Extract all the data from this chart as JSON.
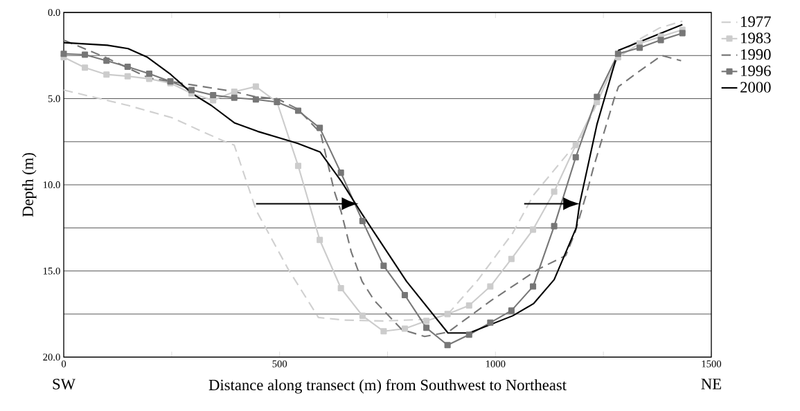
{
  "chart_data": {
    "type": "line",
    "xlabel": "Distance along transect (m) from Southwest to Northeast",
    "ylabel": "Depth (m)",
    "annotations": [
      "SW",
      "NE"
    ],
    "xlim": [
      0,
      1500
    ],
    "xticks": [
      0,
      {
        "value": 250,
        "label": null
      },
      500,
      {
        "value": 750,
        "label": null
      },
      1000,
      {
        "value": 1250,
        "label": null
      },
      1500
    ],
    "ylim": [
      20,
      0
    ],
    "yticks": [
      {
        "value": 0,
        "label": "0.0"
      },
      {
        "value": 2.5,
        "label": null
      },
      {
        "value": 5,
        "label": "5.0"
      },
      {
        "value": 7.5,
        "label": null
      },
      {
        "value": 10,
        "label": "10.0"
      },
      {
        "value": 12.5,
        "label": null
      },
      {
        "value": 15,
        "label": "15.0"
      },
      {
        "value": 17.5,
        "label": null
      },
      {
        "value": 20,
        "label": "20.0"
      }
    ],
    "grid": "y",
    "legend": "top right",
    "series": [
      {
        "name": "1977",
        "color": "#d0d0d0",
        "line_style": "dashed",
        "marker": "none",
        "x": [
          0,
          150,
          250,
          320,
          374,
          395,
          446,
          520,
          590,
          650,
          740,
          850,
          890,
          960,
          1040,
          1088,
          1200,
          1285,
          1330,
          1380,
          1433
        ],
        "values": [
          4.5,
          5.4,
          6.1,
          6.9,
          7.5,
          7.7,
          11.5,
          14.9,
          17.7,
          17.85,
          17.9,
          17.8,
          17.5,
          15.5,
          12.8,
          10.6,
          7.2,
          2.5,
          1.6,
          0.9,
          0.5
        ]
      },
      {
        "name": "1983",
        "color": "#cccccc",
        "line_style": "solid",
        "marker": "square",
        "x": [
          0,
          49,
          99,
          148,
          198,
          247,
          296,
          346,
          395,
          445,
          494,
          543,
          593,
          642,
          692,
          741,
          790,
          840,
          889,
          939,
          988,
          1037,
          1087,
          1136,
          1186,
          1235,
          1284,
          1334,
          1383,
          1433
        ],
        "values": [
          2.6,
          3.2,
          3.6,
          3.7,
          3.85,
          4.1,
          4.7,
          5.1,
          4.6,
          4.3,
          5.2,
          8.9,
          13.2,
          16.0,
          17.6,
          18.5,
          18.35,
          17.9,
          17.5,
          17.0,
          15.9,
          14.3,
          12.6,
          10.4,
          7.7,
          5.2,
          2.6,
          1.8,
          1.4,
          1.0
        ]
      },
      {
        "name": "1990",
        "color": "#777777",
        "line_style": "dashed",
        "marker": "none",
        "x": [
          0,
          96,
          197,
          247,
          297,
          347,
          396,
          445,
          494,
          542,
          595,
          627,
          643,
          666,
          691,
          719,
          783,
          836,
          890,
          991,
          1051,
          1099,
          1163,
          1184,
          1211,
          1227,
          1275,
          1285,
          1328,
          1385,
          1430
        ],
        "values": [
          1.6,
          2.6,
          3.8,
          4.0,
          4.2,
          4.4,
          4.6,
          4.9,
          5.0,
          5.6,
          7.0,
          10.4,
          11.6,
          13.9,
          15.6,
          16.7,
          18.4,
          18.8,
          18.55,
          16.7,
          15.7,
          14.9,
          14.1,
          12.8,
          10.5,
          9.0,
          5.0,
          4.3,
          3.5,
          2.5,
          2.8
        ]
      },
      {
        "name": "1996",
        "color": "#777777",
        "line_style": "solid",
        "marker": "square",
        "x": [
          0,
          49,
          99,
          148,
          198,
          247,
          296,
          346,
          395,
          445,
          494,
          543,
          593,
          642,
          692,
          741,
          790,
          840,
          889,
          939,
          988,
          1037,
          1087,
          1136,
          1186,
          1235,
          1284,
          1334,
          1383,
          1433
        ],
        "values": [
          2.4,
          2.45,
          2.8,
          3.15,
          3.55,
          4.0,
          4.5,
          4.8,
          4.95,
          5.05,
          5.2,
          5.7,
          6.7,
          9.3,
          12.1,
          14.7,
          16.4,
          18.3,
          19.3,
          18.7,
          18.0,
          17.3,
          15.9,
          12.4,
          8.4,
          4.9,
          2.4,
          2.05,
          1.6,
          1.2
        ]
      },
      {
        "name": "2000",
        "color": "#000000",
        "line_style": "solid",
        "marker": "none",
        "x": [
          0,
          101,
          149,
          194,
          248,
          297,
          342,
          395,
          449,
          502,
          542,
          594,
          643,
          691,
          794,
          890,
          939,
          1040,
          1088,
          1136,
          1187,
          1195,
          1235,
          1285,
          1433
        ],
        "values": [
          1.75,
          1.9,
          2.1,
          2.6,
          3.6,
          4.7,
          5.4,
          6.4,
          6.9,
          7.3,
          7.6,
          8.1,
          9.8,
          11.7,
          15.6,
          18.6,
          18.6,
          17.6,
          16.9,
          15.5,
          12.5,
          11.1,
          6.5,
          2.2,
          0.7
        ]
      }
    ]
  }
}
